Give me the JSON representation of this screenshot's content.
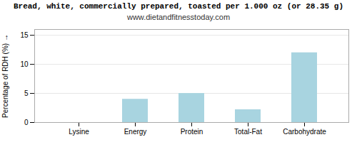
{
  "chart_data": {
    "type": "bar",
    "title": "Bread, white, commercially prepared, toasted per 1.000 oz (or 28.35 g)",
    "subtitle": "www.dietandfitnesstoday.com",
    "categories": [
      "Lysine",
      "Energy",
      "Protein",
      "Total-Fat",
      "Carbohydrate"
    ],
    "values": [
      0.0,
      4.0,
      5.0,
      2.2,
      12.0
    ],
    "color": "#a8d4e0",
    "ylabel": "Percentage of RDH (%)",
    "ylim": [
      0,
      16
    ],
    "yticks": [
      0,
      5,
      10,
      15
    ],
    "grid": true
  }
}
